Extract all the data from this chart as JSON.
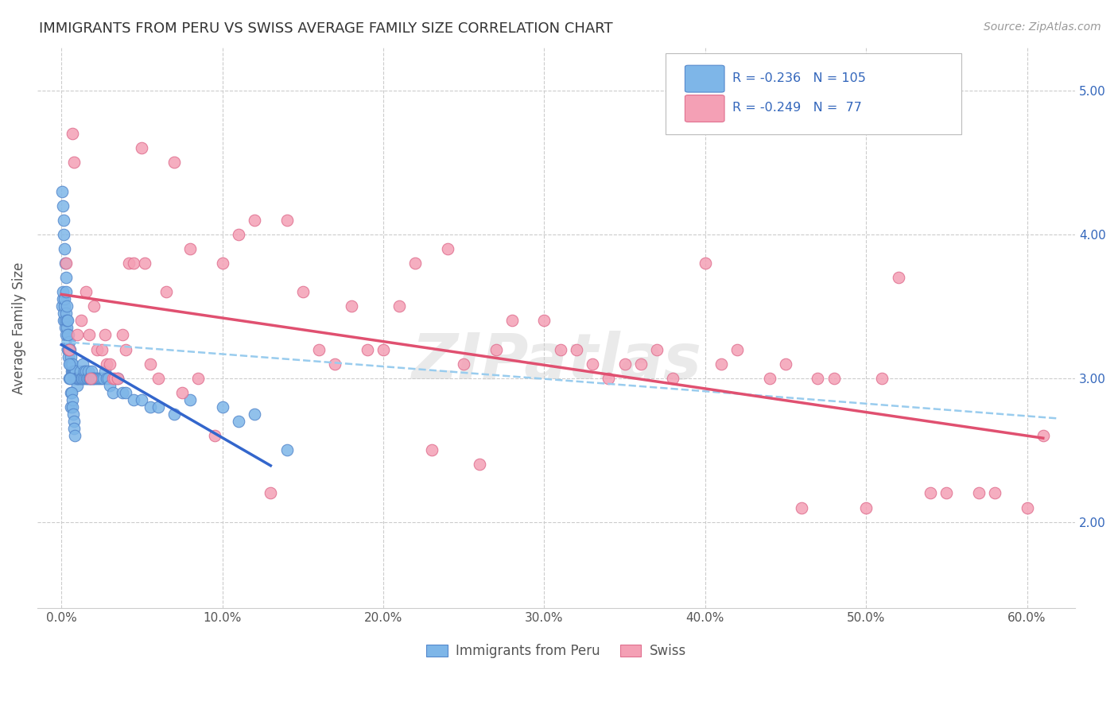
{
  "title": "IMMIGRANTS FROM PERU VS SWISS AVERAGE FAMILY SIZE CORRELATION CHART",
  "source": "Source: ZipAtlas.com",
  "ylabel": "Average Family Size",
  "xlabel_ticks": [
    "0.0%",
    "10.0%",
    "20.0%",
    "30.0%",
    "40.0%",
    "50.0%",
    "60.0%"
  ],
  "xlabel_vals": [
    0.0,
    10.0,
    20.0,
    30.0,
    40.0,
    50.0,
    60.0
  ],
  "ylabel_right_ticks": [
    2.0,
    3.0,
    4.0,
    5.0
  ],
  "ylim": [
    1.4,
    5.3
  ],
  "xlim": [
    -1.5,
    63
  ],
  "blue_color": "#7EB6E8",
  "pink_color": "#F4A0B5",
  "blue_edge": "#5588CC",
  "pink_edge": "#E07090",
  "trend_blue_solid": "#3366CC",
  "trend_pink_solid": "#E05070",
  "trend_dashed": "#99CCEE",
  "legend_text_color": "#3366BB",
  "title_color": "#333333",
  "grid_color": "#CCCCCC",
  "background_color": "#FFFFFF",
  "watermark": "ZIPatlas",
  "legend_label_blue": "Immigrants from Peru",
  "legend_label_pink": "Swiss",
  "blue_x": [
    0.05,
    0.08,
    0.1,
    0.12,
    0.15,
    0.18,
    0.2,
    0.22,
    0.25,
    0.28,
    0.3,
    0.32,
    0.35,
    0.38,
    0.4,
    0.42,
    0.45,
    0.48,
    0.5,
    0.52,
    0.55,
    0.58,
    0.6,
    0.62,
    0.65,
    0.68,
    0.7,
    0.72,
    0.75,
    0.78,
    0.8,
    0.82,
    0.85,
    0.88,
    0.9,
    0.92,
    0.95,
    0.98,
    1.0,
    1.05,
    1.1,
    1.15,
    1.2,
    1.25,
    1.3,
    1.35,
    1.4,
    1.45,
    1.5,
    1.55,
    1.6,
    1.65,
    1.7,
    1.75,
    1.8,
    1.85,
    1.9,
    1.95,
    2.0,
    2.1,
    2.2,
    2.3,
    2.4,
    2.5,
    2.6,
    2.7,
    2.8,
    2.9,
    3.0,
    3.2,
    3.5,
    3.8,
    4.0,
    4.5,
    5.0,
    5.5,
    6.0,
    7.0,
    8.0,
    10.0,
    11.0,
    12.0,
    14.0,
    0.06,
    0.09,
    0.13,
    0.16,
    0.19,
    0.23,
    0.26,
    0.29,
    0.33,
    0.36,
    0.39,
    0.43,
    0.46,
    0.49,
    0.53,
    0.56,
    0.59,
    0.63,
    0.66,
    0.69,
    0.73,
    0.76,
    0.79,
    0.83
  ],
  "blue_y": [
    3.5,
    3.55,
    3.6,
    3.4,
    3.45,
    3.5,
    3.55,
    3.35,
    3.4,
    3.45,
    3.3,
    3.35,
    3.4,
    3.2,
    3.25,
    3.3,
    3.15,
    3.2,
    3.25,
    3.1,
    3.2,
    3.1,
    3.15,
    3.05,
    3.1,
    3.05,
    3.1,
    3.0,
    3.05,
    3.0,
    3.05,
    3.0,
    3.05,
    3.0,
    3.05,
    3.0,
    3.0,
    2.95,
    3.0,
    3.0,
    3.0,
    3.05,
    3.0,
    3.0,
    3.1,
    3.0,
    3.05,
    3.0,
    3.05,
    3.0,
    3.0,
    3.05,
    3.0,
    3.0,
    3.0,
    3.05,
    3.0,
    3.0,
    3.0,
    3.0,
    3.0,
    3.0,
    3.0,
    3.0,
    3.0,
    3.05,
    3.0,
    3.0,
    2.95,
    2.9,
    3.0,
    2.9,
    2.9,
    2.85,
    2.85,
    2.8,
    2.8,
    2.75,
    2.85,
    2.8,
    2.7,
    2.75,
    2.5,
    4.3,
    4.2,
    4.1,
    4.0,
    3.9,
    3.8,
    3.7,
    3.6,
    3.5,
    3.4,
    3.3,
    3.2,
    3.1,
    3.0,
    3.0,
    2.9,
    2.8,
    2.9,
    2.85,
    2.8,
    2.75,
    2.7,
    2.65,
    2.6
  ],
  "pink_x": [
    0.3,
    0.5,
    0.7,
    0.8,
    1.0,
    1.2,
    1.5,
    1.7,
    1.8,
    2.0,
    2.2,
    2.5,
    2.7,
    2.8,
    3.0,
    3.2,
    3.3,
    3.5,
    3.8,
    4.0,
    4.2,
    4.5,
    5.0,
    5.2,
    5.5,
    6.0,
    6.5,
    7.0,
    7.5,
    8.0,
    8.5,
    9.5,
    10.0,
    11.0,
    12.0,
    13.0,
    14.0,
    15.0,
    16.0,
    17.0,
    18.0,
    19.0,
    20.0,
    21.0,
    22.0,
    23.0,
    24.0,
    25.0,
    26.0,
    27.0,
    28.0,
    30.0,
    31.0,
    32.0,
    33.0,
    34.0,
    35.0,
    36.0,
    37.0,
    38.0,
    40.0,
    41.0,
    42.0,
    44.0,
    45.0,
    46.0,
    47.0,
    48.0,
    50.0,
    51.0,
    52.0,
    54.0,
    55.0,
    57.0,
    58.0,
    60.0,
    61.0
  ],
  "pink_y": [
    3.8,
    3.2,
    4.7,
    4.5,
    3.3,
    3.4,
    3.6,
    3.3,
    3.0,
    3.5,
    3.2,
    3.2,
    3.3,
    3.1,
    3.1,
    3.0,
    3.0,
    3.0,
    3.3,
    3.2,
    3.8,
    3.8,
    4.6,
    3.8,
    3.1,
    3.0,
    3.6,
    4.5,
    2.9,
    3.9,
    3.0,
    2.6,
    3.8,
    4.0,
    4.1,
    2.2,
    4.1,
    3.6,
    3.2,
    3.1,
    3.5,
    3.2,
    3.2,
    3.5,
    3.8,
    2.5,
    3.9,
    3.1,
    2.4,
    3.2,
    3.4,
    3.4,
    3.2,
    3.2,
    3.1,
    3.0,
    3.1,
    3.1,
    3.2,
    3.0,
    3.8,
    3.1,
    3.2,
    3.0,
    3.1,
    2.1,
    3.0,
    3.0,
    2.1,
    3.0,
    3.7,
    2.2,
    2.2,
    2.2,
    2.2,
    2.1,
    2.6
  ]
}
